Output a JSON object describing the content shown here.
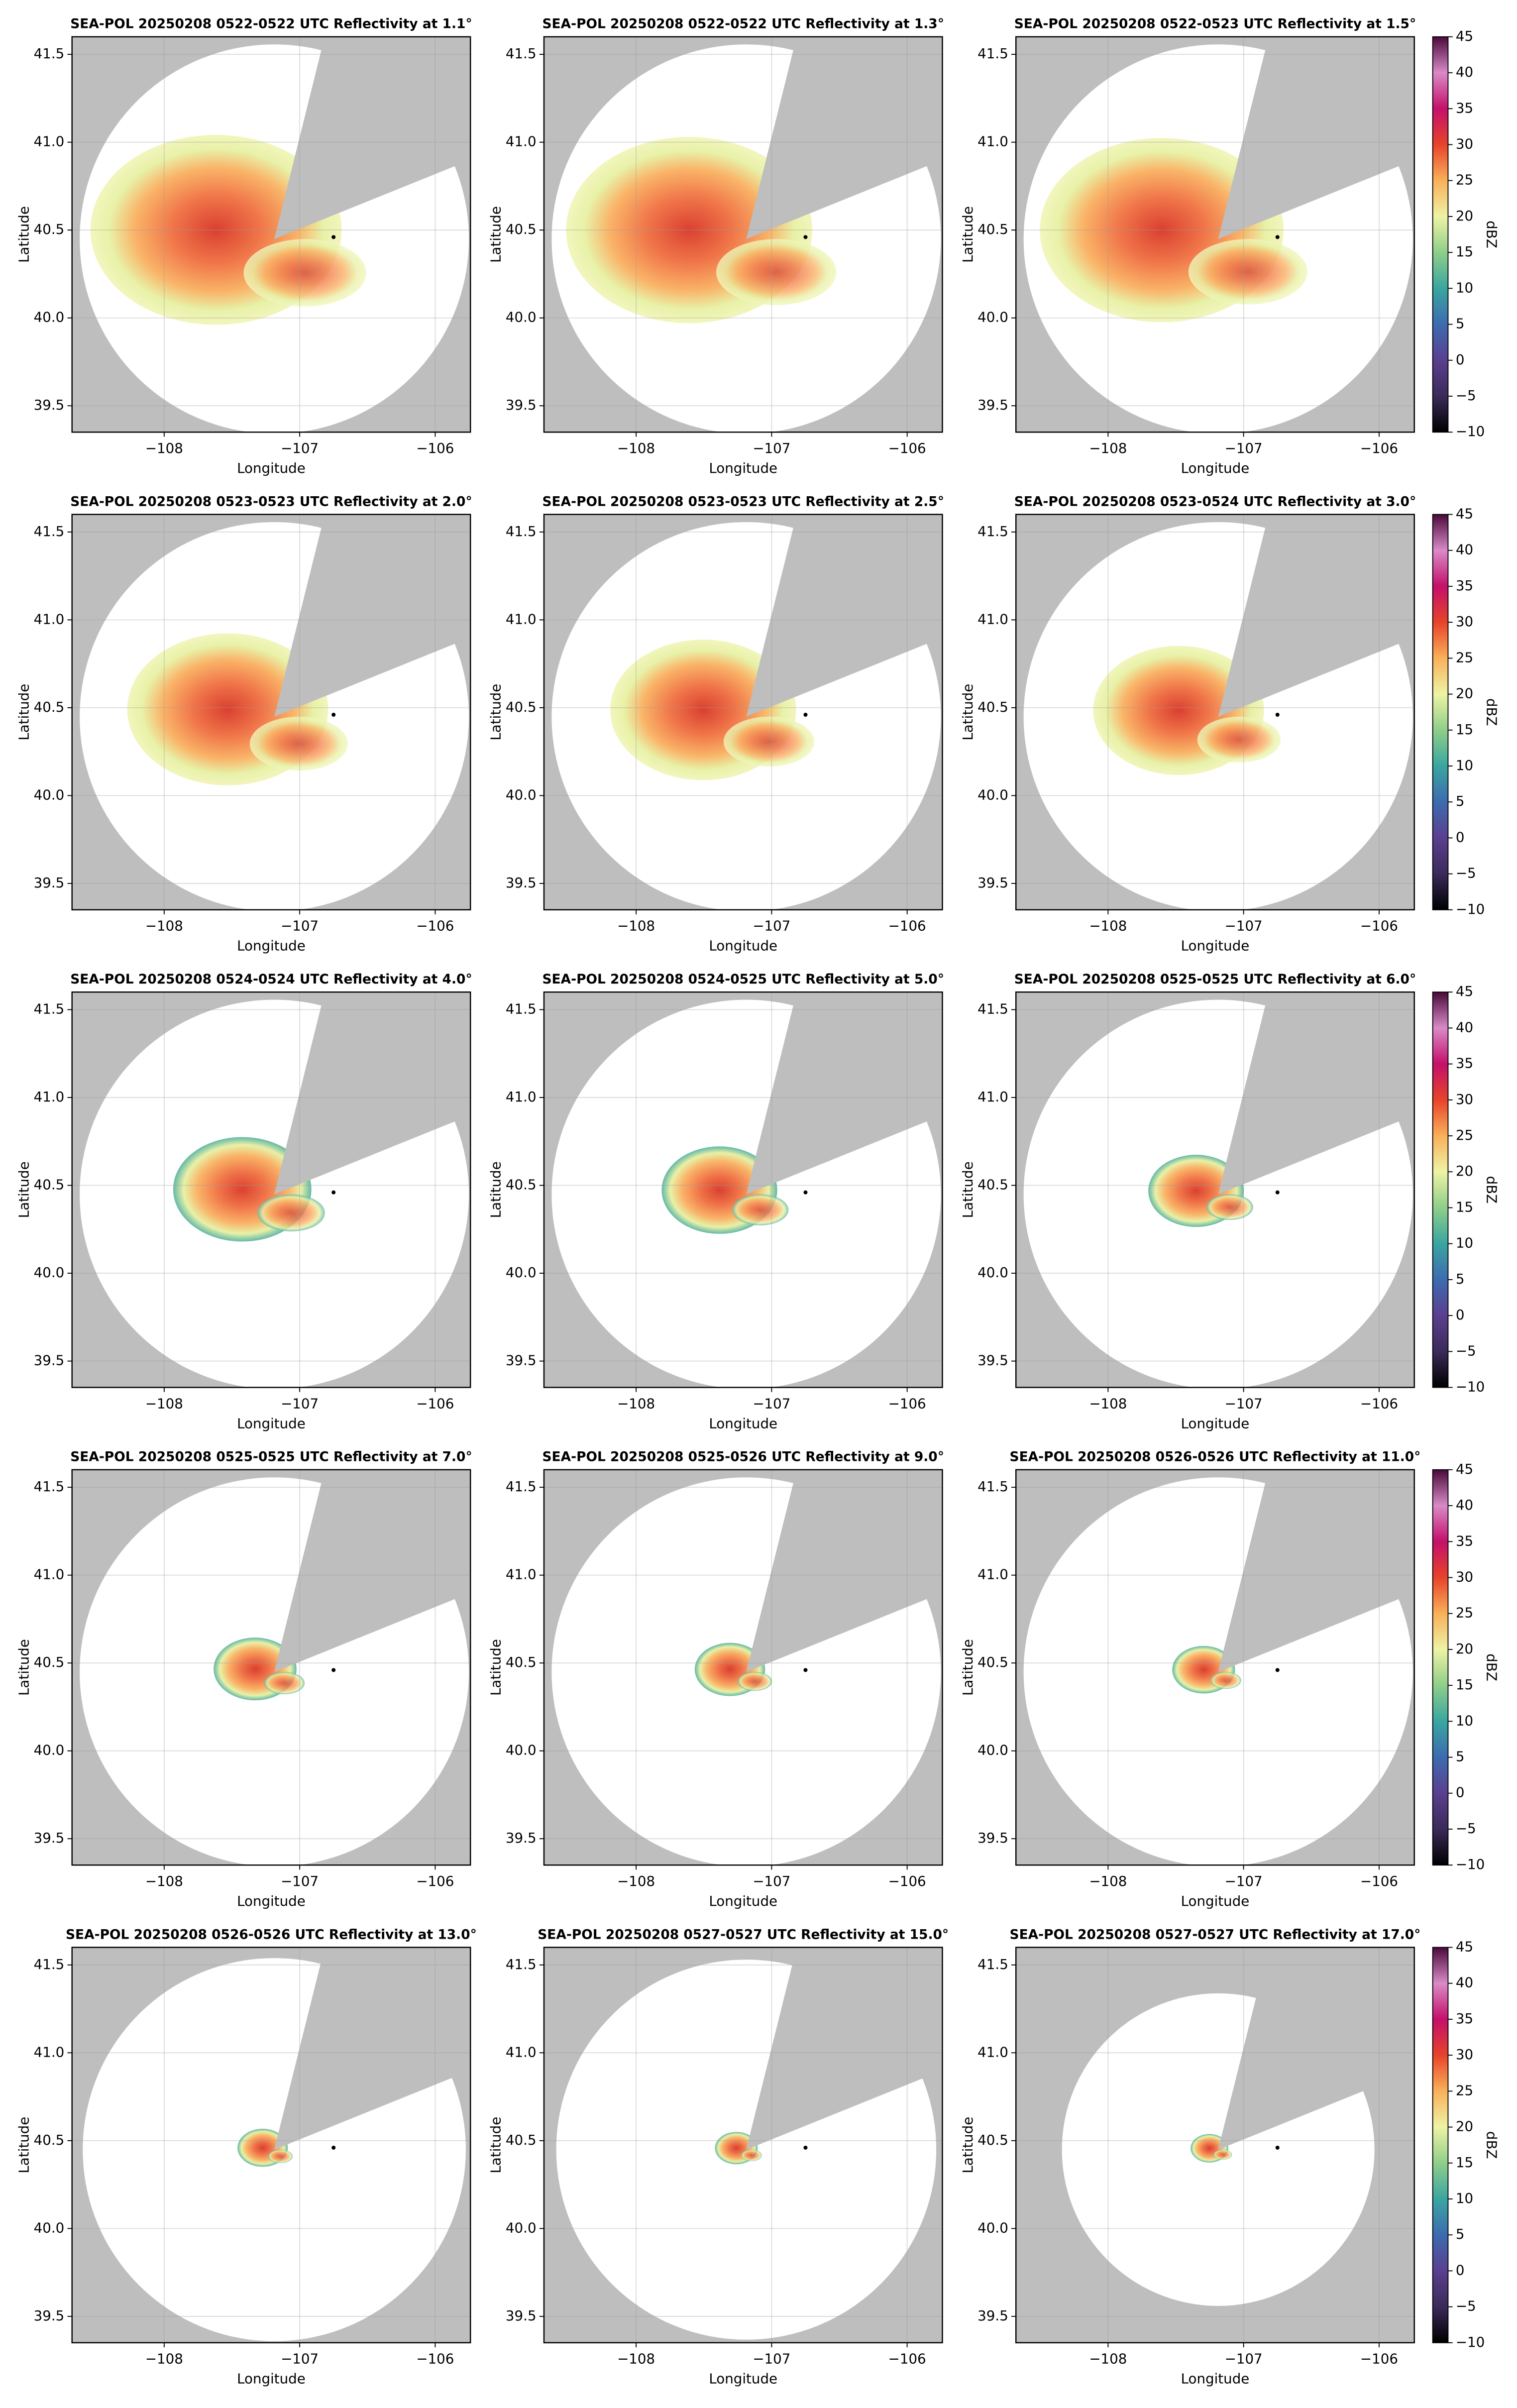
{
  "chart_data": [
    {
      "type": "ppi",
      "title": "SEA-POL 20250208 0522-0522 UTC Reflectivity at 1.1°",
      "xlabel": "Longitude",
      "ylabel": "Latitude",
      "xlim": [
        -108.68,
        -105.74
      ],
      "ylim": [
        39.35,
        41.6
      ],
      "xticks": [
        {
          "value": -108,
          "label": "−108"
        },
        {
          "value": -107,
          "label": "−107"
        },
        {
          "value": -106,
          "label": "−106"
        }
      ],
      "yticks": [
        39.5,
        {
          "value": 40,
          "label": "40.0"
        },
        40.5,
        {
          "value": 41,
          "label": "41.0"
        },
        41.5
      ],
      "grid": true,
      "marker_x": [
        -106.75
      ],
      "marker_y": [
        40.46
      ]
    },
    {
      "type": "ppi",
      "title": "SEA-POL 20250208 0522-0522 UTC Reflectivity at 1.3°",
      "xlabel": "Longitude",
      "ylabel": "Latitude",
      "xlim": [
        -108.68,
        -105.74
      ],
      "ylim": [
        39.35,
        41.6
      ],
      "xticks": [
        {
          "value": -108,
          "label": "−108"
        },
        {
          "value": -107,
          "label": "−107"
        },
        {
          "value": -106,
          "label": "−106"
        }
      ],
      "yticks": [
        39.5,
        {
          "value": 40,
          "label": "40.0"
        },
        40.5,
        {
          "value": 41,
          "label": "41.0"
        },
        41.5
      ],
      "grid": true,
      "marker_x": [
        -106.75
      ],
      "marker_y": [
        40.46
      ]
    },
    {
      "type": "ppi",
      "title": "SEA-POL 20250208 0522-0523 UTC Reflectivity at 1.5°",
      "xlabel": "Longitude",
      "ylabel": "Latitude",
      "xlim": [
        -108.68,
        -105.74
      ],
      "ylim": [
        39.35,
        41.6
      ],
      "xticks": [
        {
          "value": -108,
          "label": "−108"
        },
        {
          "value": -107,
          "label": "−107"
        },
        {
          "value": -106,
          "label": "−106"
        }
      ],
      "yticks": [
        39.5,
        {
          "value": 40,
          "label": "40.0"
        },
        40.5,
        {
          "value": 41,
          "label": "41.0"
        },
        41.5
      ],
      "grid": true,
      "marker_x": [
        -106.75
      ],
      "marker_y": [
        40.46
      ],
      "colorbar": {
        "label": "dBZ",
        "lim": [
          -10,
          45
        ],
        "ticks": [
          {
            "value": -10,
            "label": "−10"
          },
          {
            "value": -5,
            "label": "−5"
          },
          0,
          5,
          10,
          15,
          20,
          25,
          30,
          35,
          40,
          45
        ],
        "colors": [
          "#000000",
          "#3b2a5a",
          "#5b3f8f",
          "#3d6bb0",
          "#3aa6a0",
          "#8fce8a",
          "#eef3a4",
          "#f9b05a",
          "#e8432a",
          "#c4106a",
          "#d98ac8",
          "#4a0a3a"
        ]
      }
    },
    {
      "type": "ppi",
      "title": "SEA-POL 20250208 0523-0523 UTC Reflectivity at 2.0°",
      "xlabel": "Longitude",
      "ylabel": "Latitude",
      "xlim": [
        -108.68,
        -105.74
      ],
      "ylim": [
        39.35,
        41.6
      ],
      "xticks": [
        {
          "value": -108,
          "label": "−108"
        },
        {
          "value": -107,
          "label": "−107"
        },
        {
          "value": -106,
          "label": "−106"
        }
      ],
      "yticks": [
        39.5,
        {
          "value": 40,
          "label": "40.0"
        },
        40.5,
        {
          "value": 41,
          "label": "41.0"
        },
        41.5
      ],
      "grid": true,
      "marker_x": [
        -106.75
      ],
      "marker_y": [
        40.46
      ]
    },
    {
      "type": "ppi",
      "title": "SEA-POL 20250208 0523-0523 UTC Reflectivity at 2.5°",
      "xlabel": "Longitude",
      "ylabel": "Latitude",
      "xlim": [
        -108.68,
        -105.74
      ],
      "ylim": [
        39.35,
        41.6
      ],
      "xticks": [
        {
          "value": -108,
          "label": "−108"
        },
        {
          "value": -107,
          "label": "−107"
        },
        {
          "value": -106,
          "label": "−106"
        }
      ],
      "yticks": [
        39.5,
        {
          "value": 40,
          "label": "40.0"
        },
        40.5,
        {
          "value": 41,
          "label": "41.0"
        },
        41.5
      ],
      "grid": true,
      "marker_x": [
        -106.75
      ],
      "marker_y": [
        40.46
      ]
    },
    {
      "type": "ppi",
      "title": "SEA-POL 20250208 0523-0524 UTC Reflectivity at 3.0°",
      "xlabel": "Longitude",
      "ylabel": "Latitude",
      "xlim": [
        -108.68,
        -105.74
      ],
      "ylim": [
        39.35,
        41.6
      ],
      "xticks": [
        {
          "value": -108,
          "label": "−108"
        },
        {
          "value": -107,
          "label": "−107"
        },
        {
          "value": -106,
          "label": "−106"
        }
      ],
      "yticks": [
        39.5,
        {
          "value": 40,
          "label": "40.0"
        },
        40.5,
        {
          "value": 41,
          "label": "41.0"
        },
        41.5
      ],
      "grid": true,
      "marker_x": [
        -106.75
      ],
      "marker_y": [
        40.46
      ],
      "colorbar": {
        "label": "dBZ",
        "lim": [
          -10,
          45
        ],
        "ticks": [
          {
            "value": -10,
            "label": "−10"
          },
          {
            "value": -5,
            "label": "−5"
          },
          0,
          5,
          10,
          15,
          20,
          25,
          30,
          35,
          40,
          45
        ],
        "colors": [
          "#000000",
          "#3b2a5a",
          "#5b3f8f",
          "#3d6bb0",
          "#3aa6a0",
          "#8fce8a",
          "#eef3a4",
          "#f9b05a",
          "#e8432a",
          "#c4106a",
          "#d98ac8",
          "#4a0a3a"
        ]
      }
    },
    {
      "type": "ppi",
      "title": "SEA-POL 20250208 0524-0524 UTC Reflectivity at 4.0°",
      "xlabel": "Longitude",
      "ylabel": "Latitude",
      "xlim": [
        -108.68,
        -105.74
      ],
      "ylim": [
        39.35,
        41.6
      ],
      "xticks": [
        {
          "value": -108,
          "label": "−108"
        },
        {
          "value": -107,
          "label": "−107"
        },
        {
          "value": -106,
          "label": "−106"
        }
      ],
      "yticks": [
        39.5,
        {
          "value": 40,
          "label": "40.0"
        },
        40.5,
        {
          "value": 41,
          "label": "41.0"
        },
        41.5
      ],
      "grid": true,
      "marker_x": [
        -106.75
      ],
      "marker_y": [
        40.46
      ]
    },
    {
      "type": "ppi",
      "title": "SEA-POL 20250208 0524-0525 UTC Reflectivity at 5.0°",
      "xlabel": "Longitude",
      "ylabel": "Latitude",
      "xlim": [
        -108.68,
        -105.74
      ],
      "ylim": [
        39.35,
        41.6
      ],
      "xticks": [
        {
          "value": -108,
          "label": "−108"
        },
        {
          "value": -107,
          "label": "−107"
        },
        {
          "value": -106,
          "label": "−106"
        }
      ],
      "yticks": [
        39.5,
        {
          "value": 40,
          "label": "40.0"
        },
        40.5,
        {
          "value": 41,
          "label": "41.0"
        },
        41.5
      ],
      "grid": true,
      "marker_x": [
        -106.75
      ],
      "marker_y": [
        40.46
      ]
    },
    {
      "type": "ppi",
      "title": "SEA-POL 20250208 0525-0525 UTC Reflectivity at 6.0°",
      "xlabel": "Longitude",
      "ylabel": "Latitude",
      "xlim": [
        -108.68,
        -105.74
      ],
      "ylim": [
        39.35,
        41.6
      ],
      "xticks": [
        {
          "value": -108,
          "label": "−108"
        },
        {
          "value": -107,
          "label": "−107"
        },
        {
          "value": -106,
          "label": "−106"
        }
      ],
      "yticks": [
        39.5,
        {
          "value": 40,
          "label": "40.0"
        },
        40.5,
        {
          "value": 41,
          "label": "41.0"
        },
        41.5
      ],
      "grid": true,
      "marker_x": [
        -106.75
      ],
      "marker_y": [
        40.46
      ],
      "colorbar": {
        "label": "dBZ",
        "lim": [
          -10,
          45
        ],
        "ticks": [
          {
            "value": -10,
            "label": "−10"
          },
          {
            "value": -5,
            "label": "−5"
          },
          0,
          5,
          10,
          15,
          20,
          25,
          30,
          35,
          40,
          45
        ],
        "colors": [
          "#000000",
          "#3b2a5a",
          "#5b3f8f",
          "#3d6bb0",
          "#3aa6a0",
          "#8fce8a",
          "#eef3a4",
          "#f9b05a",
          "#e8432a",
          "#c4106a",
          "#d98ac8",
          "#4a0a3a"
        ]
      }
    },
    {
      "type": "ppi",
      "title": "SEA-POL 20250208 0525-0525 UTC Reflectivity at 7.0°",
      "xlabel": "Longitude",
      "ylabel": "Latitude",
      "xlim": [
        -108.68,
        -105.74
      ],
      "ylim": [
        39.35,
        41.6
      ],
      "xticks": [
        {
          "value": -108,
          "label": "−108"
        },
        {
          "value": -107,
          "label": "−107"
        },
        {
          "value": -106,
          "label": "−106"
        }
      ],
      "yticks": [
        39.5,
        {
          "value": 40,
          "label": "40.0"
        },
        40.5,
        {
          "value": 41,
          "label": "41.0"
        },
        41.5
      ],
      "grid": true,
      "marker_x": [
        -106.75
      ],
      "marker_y": [
        40.46
      ]
    },
    {
      "type": "ppi",
      "title": "SEA-POL 20250208 0525-0526 UTC Reflectivity at 9.0°",
      "xlabel": "Longitude",
      "ylabel": "Latitude",
      "xlim": [
        -108.68,
        -105.74
      ],
      "ylim": [
        39.35,
        41.6
      ],
      "xticks": [
        {
          "value": -108,
          "label": "−108"
        },
        {
          "value": -107,
          "label": "−107"
        },
        {
          "value": -106,
          "label": "−106"
        }
      ],
      "yticks": [
        39.5,
        {
          "value": 40,
          "label": "40.0"
        },
        40.5,
        {
          "value": 41,
          "label": "41.0"
        },
        41.5
      ],
      "grid": true,
      "marker_x": [
        -106.75
      ],
      "marker_y": [
        40.46
      ]
    },
    {
      "type": "ppi",
      "title": "SEA-POL 20250208 0526-0526 UTC Reflectivity at 11.0°",
      "xlabel": "Longitude",
      "ylabel": "Latitude",
      "xlim": [
        -108.68,
        -105.74
      ],
      "ylim": [
        39.35,
        41.6
      ],
      "xticks": [
        {
          "value": -108,
          "label": "−108"
        },
        {
          "value": -107,
          "label": "−107"
        },
        {
          "value": -106,
          "label": "−106"
        }
      ],
      "yticks": [
        39.5,
        {
          "value": 40,
          "label": "40.0"
        },
        40.5,
        {
          "value": 41,
          "label": "41.0"
        },
        41.5
      ],
      "grid": true,
      "marker_x": [
        -106.75
      ],
      "marker_y": [
        40.46
      ],
      "colorbar": {
        "label": "dBZ",
        "lim": [
          -10,
          45
        ],
        "ticks": [
          {
            "value": -10,
            "label": "−10"
          },
          {
            "value": -5,
            "label": "−5"
          },
          0,
          5,
          10,
          15,
          20,
          25,
          30,
          35,
          40,
          45
        ],
        "colors": [
          "#000000",
          "#3b2a5a",
          "#5b3f8f",
          "#3d6bb0",
          "#3aa6a0",
          "#8fce8a",
          "#eef3a4",
          "#f9b05a",
          "#e8432a",
          "#c4106a",
          "#d98ac8",
          "#4a0a3a"
        ]
      }
    },
    {
      "type": "ppi",
      "title": "SEA-POL 20250208 0526-0526 UTC Reflectivity at 13.0°",
      "xlabel": "Longitude",
      "ylabel": "Latitude",
      "xlim": [
        -108.68,
        -105.74
      ],
      "ylim": [
        39.35,
        41.6
      ],
      "xticks": [
        {
          "value": -108,
          "label": "−108"
        },
        {
          "value": -107,
          "label": "−107"
        },
        {
          "value": -106,
          "label": "−106"
        }
      ],
      "yticks": [
        39.5,
        {
          "value": 40,
          "label": "40.0"
        },
        40.5,
        {
          "value": 41,
          "label": "41.0"
        },
        41.5
      ],
      "grid": true,
      "marker_x": [
        -106.75
      ],
      "marker_y": [
        40.46
      ]
    },
    {
      "type": "ppi",
      "title": "SEA-POL 20250208 0527-0527 UTC Reflectivity at 15.0°",
      "xlabel": "Longitude",
      "ylabel": "Latitude",
      "xlim": [
        -108.68,
        -105.74
      ],
      "ylim": [
        39.35,
        41.6
      ],
      "xticks": [
        {
          "value": -108,
          "label": "−108"
        },
        {
          "value": -107,
          "label": "−107"
        },
        {
          "value": -106,
          "label": "−106"
        }
      ],
      "yticks": [
        39.5,
        {
          "value": 40,
          "label": "40.0"
        },
        40.5,
        {
          "value": 41,
          "label": "41.0"
        },
        41.5
      ],
      "grid": true,
      "marker_x": [
        -106.75
      ],
      "marker_y": [
        40.46
      ]
    },
    {
      "type": "ppi",
      "title": "SEA-POL 20250208 0527-0527 UTC Reflectivity at 17.0°",
      "xlabel": "Longitude",
      "ylabel": "Latitude",
      "xlim": [
        -108.68,
        -105.74
      ],
      "ylim": [
        39.35,
        41.6
      ],
      "xticks": [
        {
          "value": -108,
          "label": "−108"
        },
        {
          "value": -107,
          "label": "−107"
        },
        {
          "value": -106,
          "label": "−106"
        }
      ],
      "yticks": [
        39.5,
        {
          "value": 40,
          "label": "40.0"
        },
        40.5,
        {
          "value": 41,
          "label": "41.0"
        },
        41.5
      ],
      "grid": true,
      "marker_x": [
        -106.75
      ],
      "marker_y": [
        40.46
      ],
      "colorbar": {
        "label": "dBZ",
        "lim": [
          -10,
          45
        ],
        "ticks": [
          {
            "value": -10,
            "label": "−10"
          },
          {
            "value": -5,
            "label": "−5"
          },
          0,
          5,
          10,
          15,
          20,
          25,
          30,
          35,
          40,
          45
        ],
        "colors": [
          "#000000",
          "#3b2a5a",
          "#5b3f8f",
          "#3d6bb0",
          "#3aa6a0",
          "#8fce8a",
          "#eef3a4",
          "#f9b05a",
          "#e8432a",
          "#c4106a",
          "#d98ac8",
          "#4a0a3a"
        ]
      }
    }
  ]
}
